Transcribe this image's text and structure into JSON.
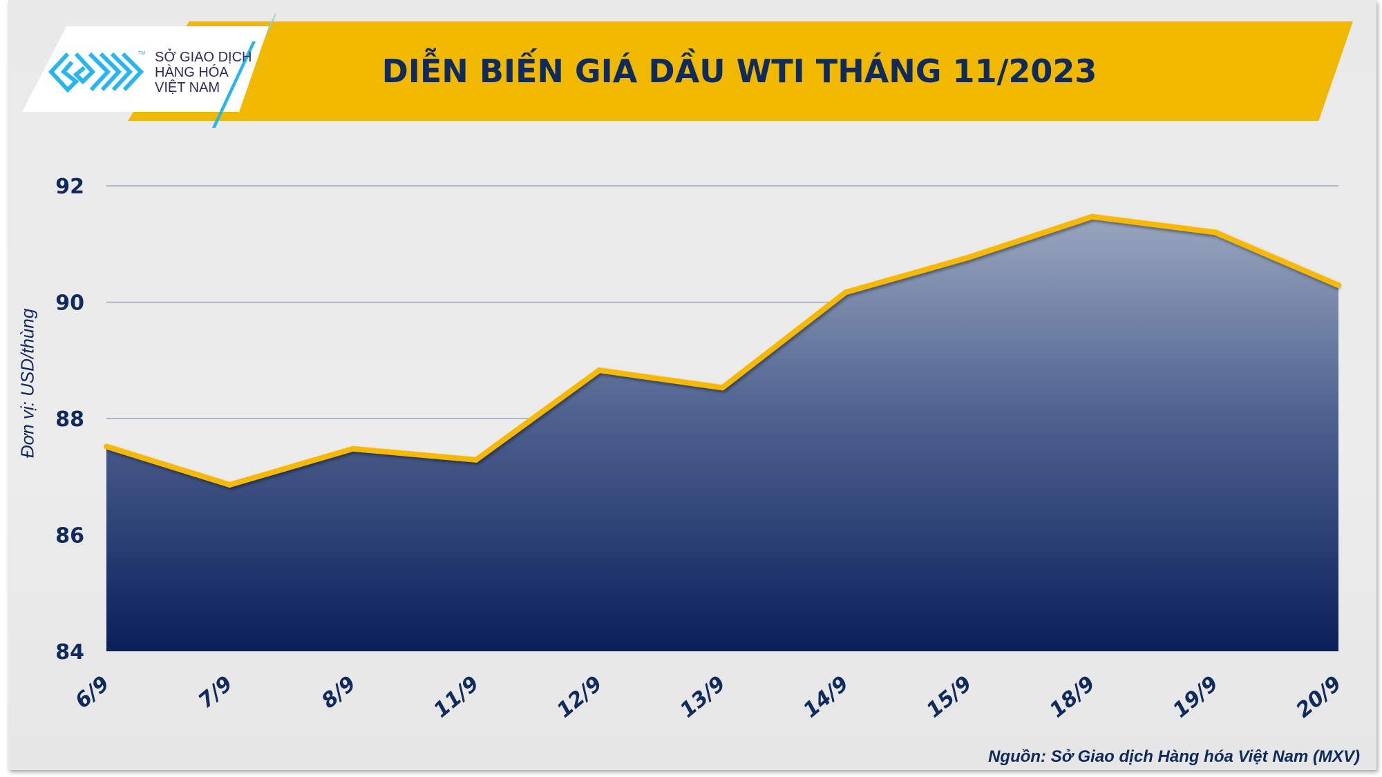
{
  "header": {
    "title": "DIỄN BIẾN GIÁ DẦU WTI THÁNG 11/2023"
  },
  "logo": {
    "lines": [
      "SỞ GIAO DỊCH",
      "HÀNG HÓA",
      "VIỆT NAM"
    ],
    "tm": "TM"
  },
  "source": "Nguồn: Sở Giao dịch Hàng hóa Việt Nam (MXV)",
  "colors": {
    "brand_yellow": "#f0b900",
    "navy": "#0f2a5c",
    "line": "#f7b900",
    "logo_blue": "#29b6f0"
  },
  "chart_data": {
    "type": "area",
    "title": "DIỄN BIẾN GIÁ DẦU WTI THÁNG 11/2023",
    "xlabel": "",
    "ylabel": "Đơn vị: USD/thùng",
    "categories": [
      "6/9",
      "7/9",
      "8/9",
      "11/9",
      "12/9",
      "13/9",
      "14/9",
      "15/9",
      "18/9",
      "19/9",
      "20/9"
    ],
    "series": [
      {
        "values": [
          87.52,
          86.86,
          87.48,
          87.29,
          88.83,
          88.53,
          90.17,
          90.77,
          91.47,
          91.2,
          90.29
        ]
      }
    ],
    "ylim": [
      84,
      92
    ],
    "yticks": [
      84,
      86,
      88,
      90,
      92
    ],
    "grid": true,
    "legend": "none"
  }
}
